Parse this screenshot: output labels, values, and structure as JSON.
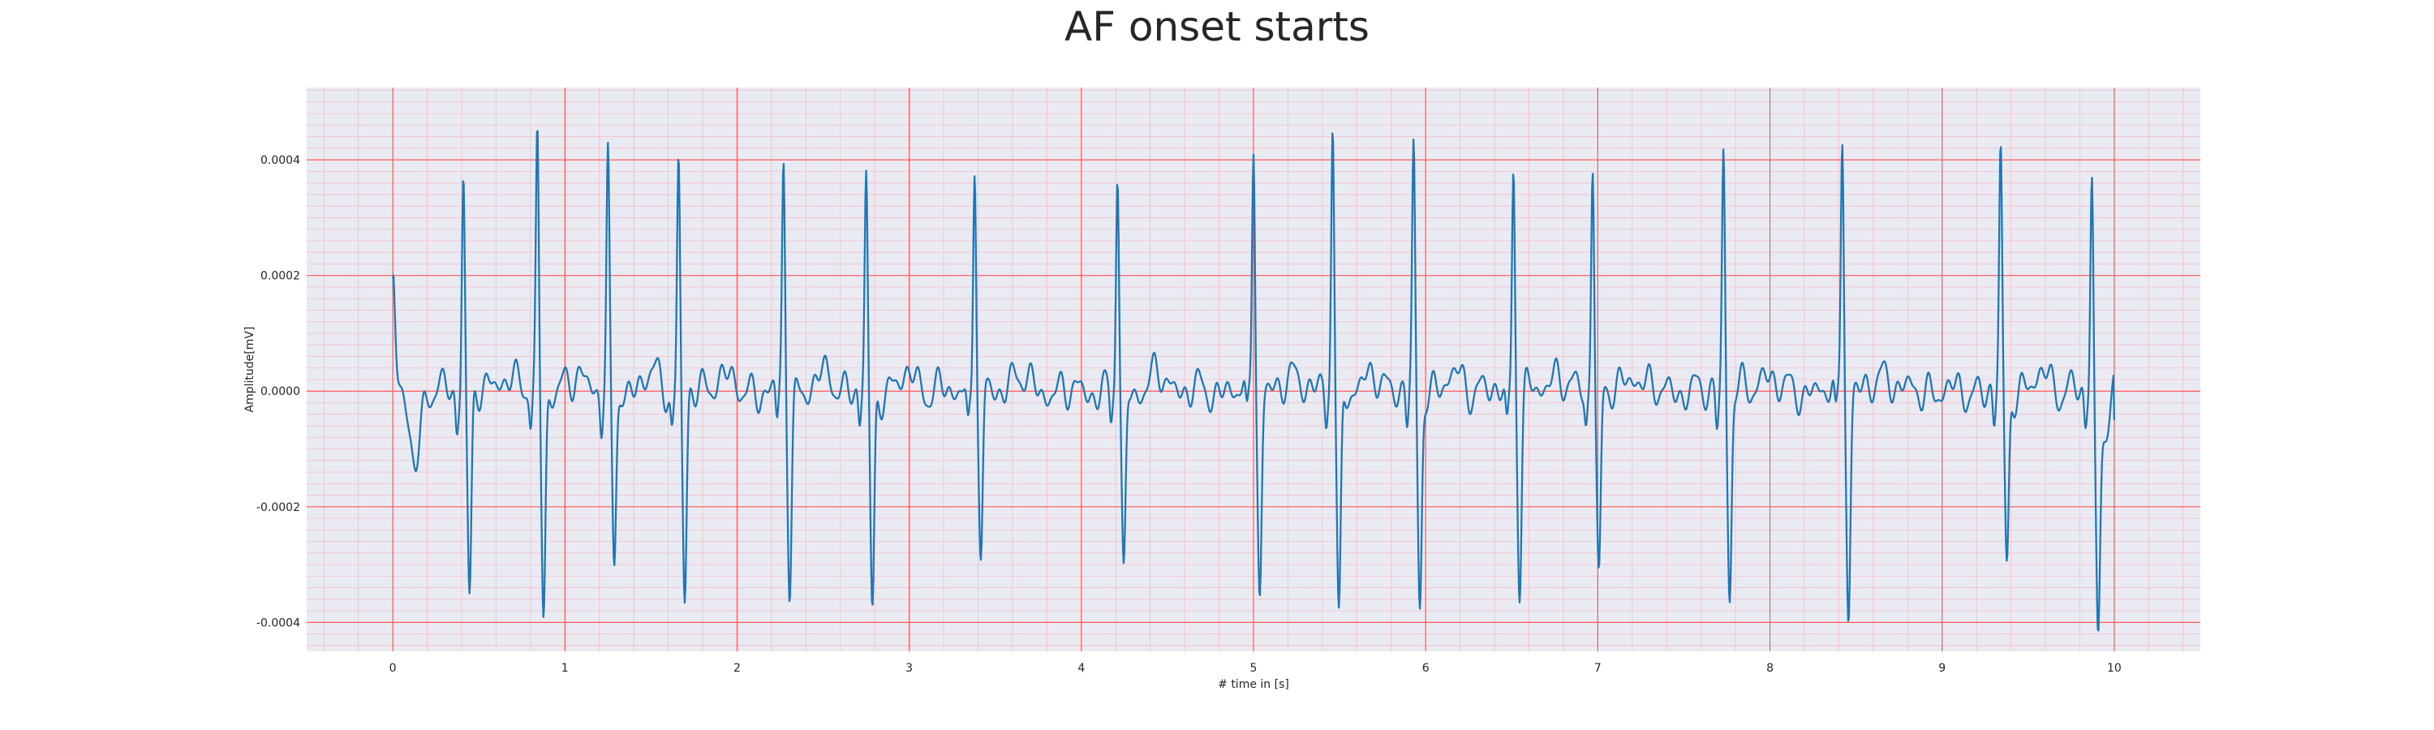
{
  "chart_data": {
    "type": "line",
    "title": "AF onset starts",
    "xlabel": "# time in [s]",
    "ylabel": "Amplitude[mV]",
    "xlim": [
      -0.5,
      10.5
    ],
    "ylim": [
      -0.00045,
      0.000525
    ],
    "x_ticks": [
      0,
      1,
      2,
      3,
      4,
      5,
      6,
      7,
      8,
      9,
      10
    ],
    "x_tick_labels": [
      "0",
      "1",
      "2",
      "3",
      "4",
      "5",
      "6",
      "7",
      "8",
      "9",
      "10"
    ],
    "y_ticks": [
      0.0004,
      0.0002,
      0.0,
      -0.0002,
      -0.0004
    ],
    "y_tick_labels": [
      "0.0004",
      "0.0002",
      "0.0000",
      "-0.0002",
      "-0.0004"
    ],
    "grid": "major red, minor pink",
    "colors": {
      "line": "#1f77b4",
      "plot_background": "#eaeaf2",
      "major_grid": "#ff5a5a",
      "minor_grid": "#f4c2cc"
    },
    "series": [
      {
        "r_peaks_s": [
          0.41,
          0.84,
          1.25,
          1.66,
          2.27,
          2.75,
          3.38,
          4.21,
          5.0,
          5.46,
          5.93,
          6.51,
          6.97,
          7.73,
          8.42,
          9.34,
          9.87
        ],
        "peak_amplitudes_mV": [
          0.00038,
          0.000445,
          0.00039,
          0.000405,
          0.00039,
          0.000368,
          0.000418,
          0.00039,
          0.000445,
          0.000478,
          0.00041,
          0.000393,
          0.00041,
          0.000422,
          0.000455,
          0.00041,
          0.000393
        ],
        "trough_amplitudes_mV": [
          -0.000365,
          -0.00038,
          -0.000305,
          -0.00037,
          -0.00033,
          -0.000385,
          -0.000315,
          -0.000325,
          -0.000345,
          -0.000405,
          -0.000365,
          -0.00033,
          -0.000325,
          -0.000355,
          -0.00038,
          -0.0003,
          -0.000345
        ],
        "start": {
          "x": 0.0,
          "y": 0.000195
        },
        "end": {
          "x": 10.0,
          "y": -5e-05
        }
      }
    ]
  }
}
